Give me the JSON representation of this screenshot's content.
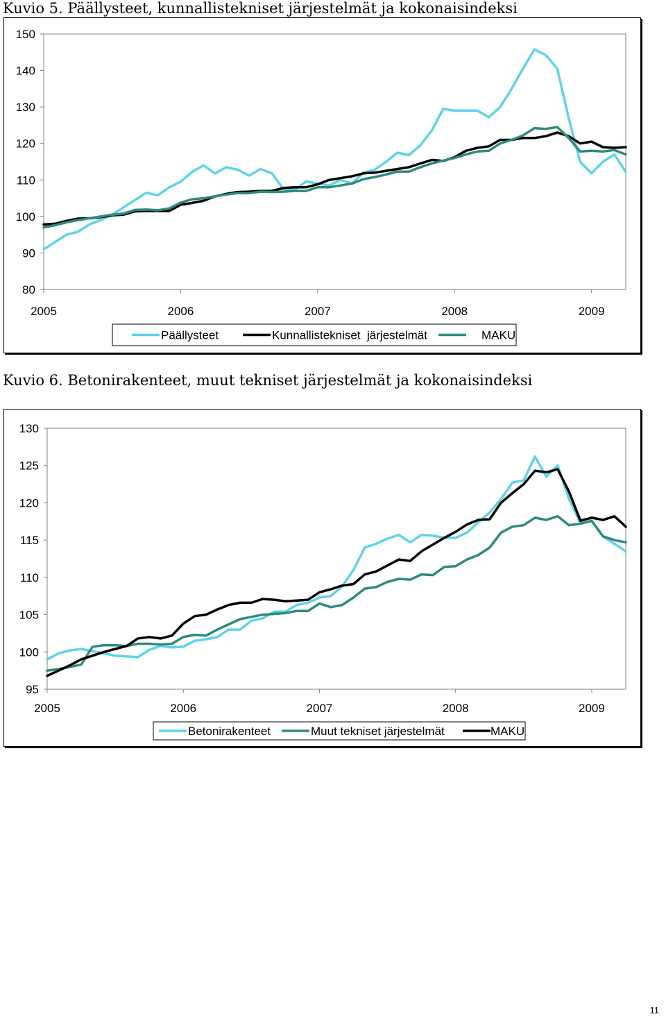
{
  "colors": {
    "light_blue": "#5fd3e9",
    "black": "#000000",
    "teal": "#2e8b7d",
    "axis": "#808080"
  },
  "chart_data": [
    {
      "type": "line",
      "caption": "Kuvio 5. Päällysteet, kunnallistekniset järjestelmät ja kokonaisindeksi",
      "ylim": [
        80,
        150
      ],
      "yticks": [
        80,
        90,
        100,
        110,
        120,
        130,
        140,
        150
      ],
      "xlim": [
        2005,
        2009.25
      ],
      "xticks": [
        "2005",
        "2006",
        "2007",
        "2008",
        "2009"
      ],
      "grid": false,
      "legend": "bottom",
      "series": [
        {
          "name": "Päällysteet",
          "color": "#5fd3e9",
          "values": [
            91.0,
            93.0,
            95.0,
            95.8,
            97.8,
            99.0,
            100.5,
            102.5,
            104.5,
            106.5,
            105.8,
            108.0,
            109.5,
            112.2,
            114.0,
            111.8,
            113.5,
            112.8,
            111.2,
            113.0,
            111.8,
            107.5,
            107.3,
            109.6,
            109.0,
            108.5,
            110.0,
            109.0,
            112.0,
            112.8,
            115.0,
            117.5,
            116.8,
            119.5,
            123.5,
            129.5,
            129.0,
            129.0,
            129.0,
            127.2,
            130.0,
            135.0,
            140.5,
            145.8,
            144.2,
            140.5,
            127.0,
            115.0,
            111.8,
            115.0,
            117.0,
            112.2
          ]
        },
        {
          "name": "Kunnallistekniset  järjestelmät",
          "color": "#000000",
          "values": [
            97.8,
            98.0,
            98.8,
            99.4,
            99.5,
            99.8,
            100.3,
            100.5,
            101.4,
            101.5,
            101.5,
            101.5,
            103.2,
            103.7,
            104.3,
            105.5,
            106.2,
            106.7,
            106.8,
            107.0,
            107.0,
            107.8,
            108.0,
            108.0,
            108.8,
            110.0,
            110.5,
            111.0,
            111.8,
            112.0,
            112.5,
            113.0,
            113.5,
            114.5,
            115.5,
            115.2,
            116.2,
            118.0,
            118.8,
            119.2,
            121.0,
            121.0,
            121.5,
            121.5,
            122.0,
            123.0,
            122.0,
            120.0,
            120.5,
            119.0,
            118.8,
            119.0
          ]
        },
        {
          "name": "MAKU",
          "color": "#2e8b7d",
          "values": [
            97.0,
            97.6,
            98.4,
            99.0,
            99.5,
            100.0,
            100.5,
            100.8,
            101.8,
            101.9,
            101.7,
            102.2,
            103.8,
            104.7,
            105.0,
            105.5,
            106.0,
            106.4,
            106.4,
            106.8,
            106.7,
            106.8,
            107.0,
            107.0,
            108.0,
            108.0,
            108.5,
            109.0,
            110.2,
            110.8,
            111.5,
            112.3,
            112.3,
            113.5,
            114.5,
            115.3,
            116.0,
            117.0,
            117.8,
            118.0,
            120.0,
            121.0,
            122.2,
            124.2,
            124.0,
            124.5,
            121.5,
            117.8,
            118.0,
            117.8,
            118.2,
            117.0
          ]
        }
      ]
    },
    {
      "type": "line",
      "caption": "Kuvio 6. Betonirakenteet, muut tekniset järjestelmät ja kokonaisindeksi",
      "ylim": [
        95,
        130
      ],
      "yticks": [
        95,
        100,
        105,
        110,
        115,
        120,
        125,
        130
      ],
      "xlim": [
        2005,
        2009.25
      ],
      "xticks": [
        "2005",
        "2006",
        "2007",
        "2008",
        "2009"
      ],
      "grid": false,
      "legend": "bottom",
      "series": [
        {
          "name": "Betonirakenteet",
          "color": "#5fd3e9",
          "values": [
            99.0,
            99.8,
            100.2,
            100.4,
            100.1,
            99.8,
            99.5,
            99.4,
            99.3,
            100.3,
            100.8,
            100.6,
            100.7,
            101.5,
            101.7,
            102.0,
            103.0,
            103.0,
            104.2,
            104.5,
            105.4,
            105.4,
            106.3,
            106.6,
            107.3,
            107.5,
            108.8,
            111.0,
            114.0,
            114.5,
            115.2,
            115.7,
            114.7,
            115.7,
            115.6,
            115.3,
            115.3,
            116.0,
            117.4,
            118.7,
            120.5,
            122.7,
            123.0,
            126.2,
            123.5,
            125.0,
            120.5,
            117.3,
            117.5,
            115.5,
            114.5,
            113.5
          ]
        },
        {
          "name": "Muut tekniset järjestelmät",
          "color": "#2e8b7d",
          "values": [
            97.5,
            97.7,
            98.0,
            98.3,
            100.7,
            100.9,
            100.9,
            100.8,
            101.1,
            101.1,
            101.0,
            101.1,
            102.0,
            102.3,
            102.2,
            103.0,
            103.7,
            104.4,
            104.7,
            105.0,
            105.1,
            105.2,
            105.5,
            105.5,
            106.5,
            106.0,
            106.3,
            107.3,
            108.5,
            108.7,
            109.4,
            109.8,
            109.7,
            110.4,
            110.3,
            111.4,
            111.5,
            112.4,
            113.0,
            114.0,
            116.0,
            116.8,
            117.0,
            118.0,
            117.7,
            118.2,
            117.0,
            117.2,
            117.6,
            115.5,
            115.0,
            114.7
          ]
        },
        {
          "name": "MAKU",
          "color": "#000000",
          "values": [
            96.8,
            97.5,
            98.2,
            99.0,
            99.5,
            100.0,
            100.4,
            100.8,
            101.8,
            102.0,
            101.8,
            102.2,
            103.8,
            104.8,
            105.0,
            105.7,
            106.3,
            106.6,
            106.6,
            107.1,
            107.0,
            106.8,
            106.9,
            107.0,
            108.0,
            108.4,
            108.9,
            109.1,
            110.4,
            110.8,
            111.6,
            112.4,
            112.2,
            113.5,
            114.4,
            115.3,
            116.1,
            117.1,
            117.7,
            117.8,
            120.0,
            121.3,
            122.5,
            124.3,
            124.1,
            124.5,
            121.5,
            117.6,
            118.0,
            117.7,
            118.2,
            116.8
          ]
        }
      ]
    }
  ],
  "page_number": "11"
}
